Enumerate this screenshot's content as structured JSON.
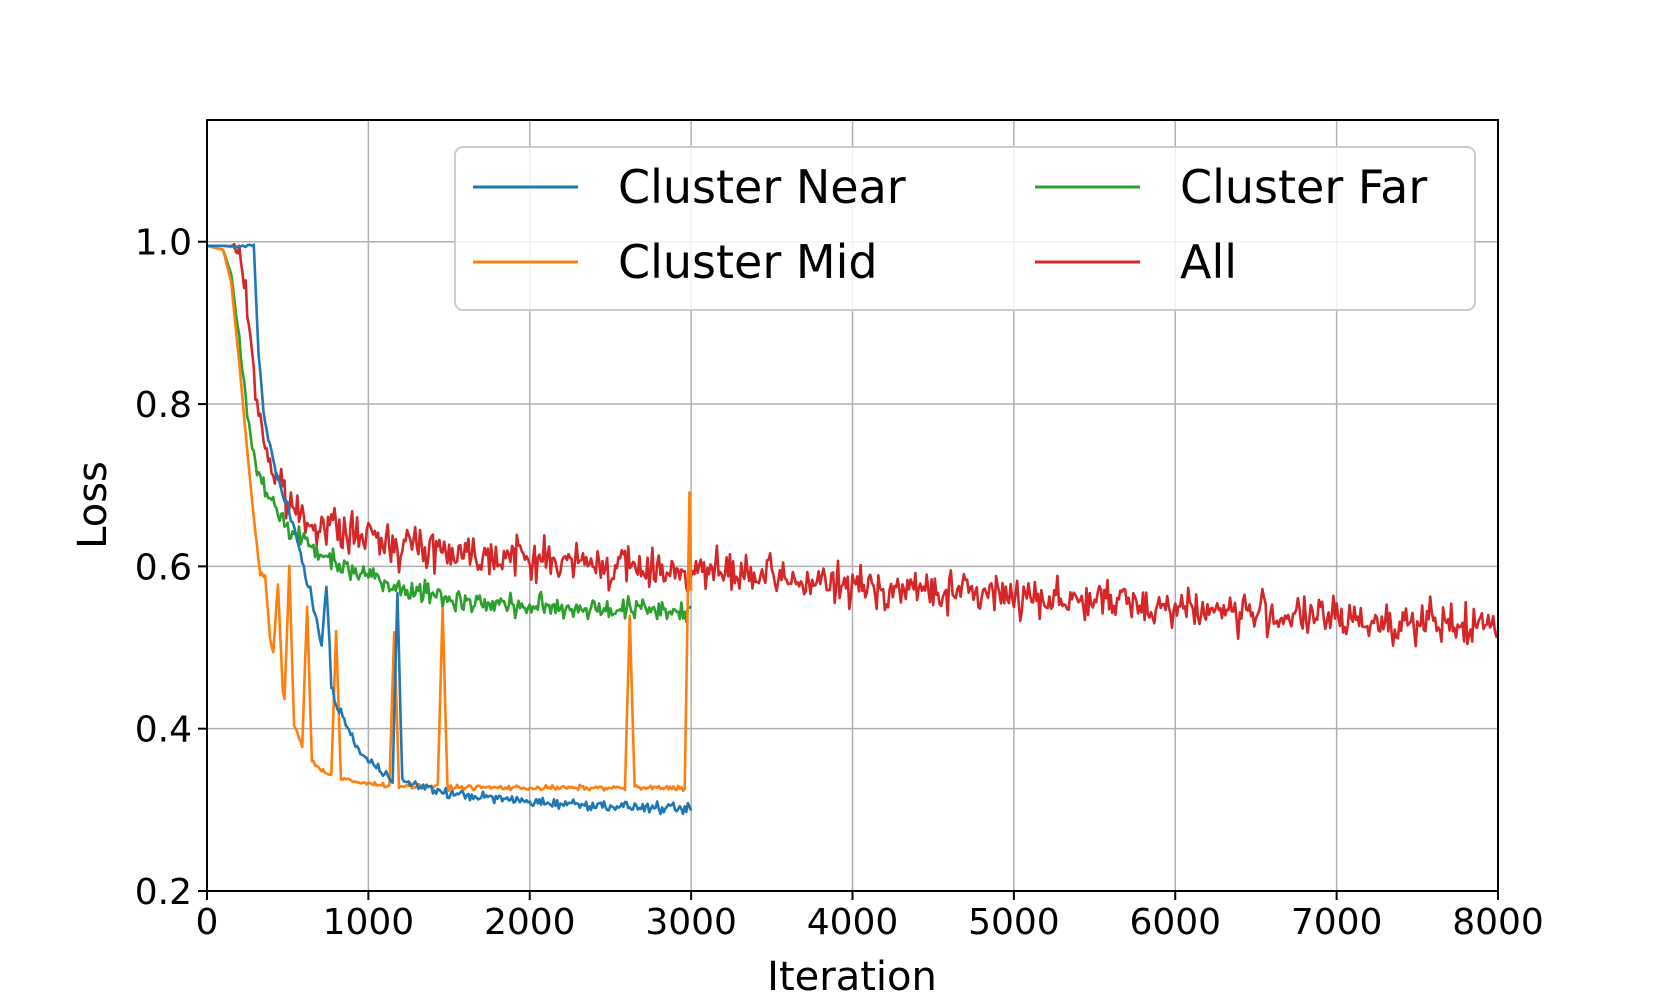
{
  "chart_data": {
    "type": "line",
    "title": "",
    "xlabel": "Iteration",
    "ylabel": "Loss",
    "xlim": [
      0,
      8000
    ],
    "ylim": [
      0.2,
      1.15
    ],
    "xticks": [
      0,
      1000,
      2000,
      3000,
      4000,
      5000,
      6000,
      7000,
      8000
    ],
    "xtick_labels": [
      "0",
      "1000",
      "2000",
      "3000",
      "4000",
      "5000",
      "6000",
      "7000",
      "8000"
    ],
    "yticks": [
      0.2,
      0.4,
      0.6,
      0.8,
      1.0
    ],
    "ytick_labels": [
      "0.2",
      "0.4",
      "0.6",
      "0.8",
      "1.0"
    ],
    "grid": true,
    "legend_position": "top-right",
    "legend_columns": 2,
    "noise_seed": 7,
    "series": [
      {
        "name": "Cluster Near",
        "color": "#1f77b4",
        "x": [
          0,
          100,
          200,
          290,
          300,
          320,
          350,
          400,
          450,
          500,
          550,
          600,
          650,
          700,
          750,
          800,
          850,
          900,
          950,
          1000,
          1100,
          1150,
          1200,
          1300,
          1500,
          2000,
          2500,
          3000
        ],
        "y": [
          0.995,
          0.995,
          0.994,
          0.994,
          0.95,
          0.86,
          0.79,
          0.74,
          0.7,
          0.67,
          0.64,
          0.6,
          0.56,
          0.51,
          0.47,
          0.43,
          0.41,
          0.39,
          0.37,
          0.36,
          0.345,
          0.34,
          0.335,
          0.33,
          0.32,
          0.31,
          0.305,
          0.3
        ],
        "noise": 0.006,
        "spikes": [
          {
            "x": 740,
            "y": 0.58
          },
          {
            "x": 1180,
            "y": 0.57
          }
        ]
      },
      {
        "name": "Cluster Mid",
        "color": "#ff7f0e",
        "x": [
          0,
          100,
          150,
          200,
          250,
          300,
          350,
          400,
          450,
          500,
          550,
          600,
          650,
          700,
          800,
          900,
          1000,
          1200,
          1500,
          2000,
          2500,
          3000
        ],
        "y": [
          0.995,
          0.99,
          0.95,
          0.85,
          0.74,
          0.64,
          0.56,
          0.5,
          0.46,
          0.42,
          0.4,
          0.375,
          0.36,
          0.35,
          0.34,
          0.335,
          0.332,
          0.33,
          0.328,
          0.327,
          0.327,
          0.327
        ],
        "noise": 0.003,
        "spikes": [
          {
            "x": 360,
            "y": 0.59
          },
          {
            "x": 440,
            "y": 0.58
          },
          {
            "x": 510,
            "y": 0.6
          },
          {
            "x": 620,
            "y": 0.55
          },
          {
            "x": 800,
            "y": 0.52
          },
          {
            "x": 1160,
            "y": 0.52
          },
          {
            "x": 1460,
            "y": 0.55
          },
          {
            "x": 2620,
            "y": 0.54
          },
          {
            "x": 2990,
            "y": 0.69
          }
        ]
      },
      {
        "name": "Cluster Far",
        "color": "#2ca02c",
        "x": [
          0,
          100,
          150,
          200,
          250,
          300,
          350,
          400,
          500,
          600,
          700,
          800,
          1000,
          1200,
          1500,
          1800,
          2000,
          2500,
          3000
        ],
        "y": [
          0.995,
          0.99,
          0.96,
          0.88,
          0.79,
          0.73,
          0.7,
          0.68,
          0.65,
          0.63,
          0.615,
          0.605,
          0.59,
          0.575,
          0.56,
          0.553,
          0.55,
          0.548,
          0.545
        ],
        "noise": 0.014,
        "spikes": []
      },
      {
        "name": "All",
        "color": "#d62728",
        "x": [
          0,
          100,
          150,
          200,
          250,
          300,
          350,
          400,
          500,
          600,
          800,
          1000,
          1500,
          2000,
          2500,
          3000,
          3500,
          4000,
          5000,
          6000,
          7000,
          8000
        ],
        "y": [
          0.995,
          0.995,
          0.994,
          0.99,
          0.92,
          0.82,
          0.76,
          0.72,
          0.68,
          0.66,
          0.645,
          0.635,
          0.62,
          0.61,
          0.6,
          0.595,
          0.585,
          0.575,
          0.565,
          0.55,
          0.535,
          0.525
        ],
        "noise": 0.024,
        "spikes": []
      }
    ]
  }
}
